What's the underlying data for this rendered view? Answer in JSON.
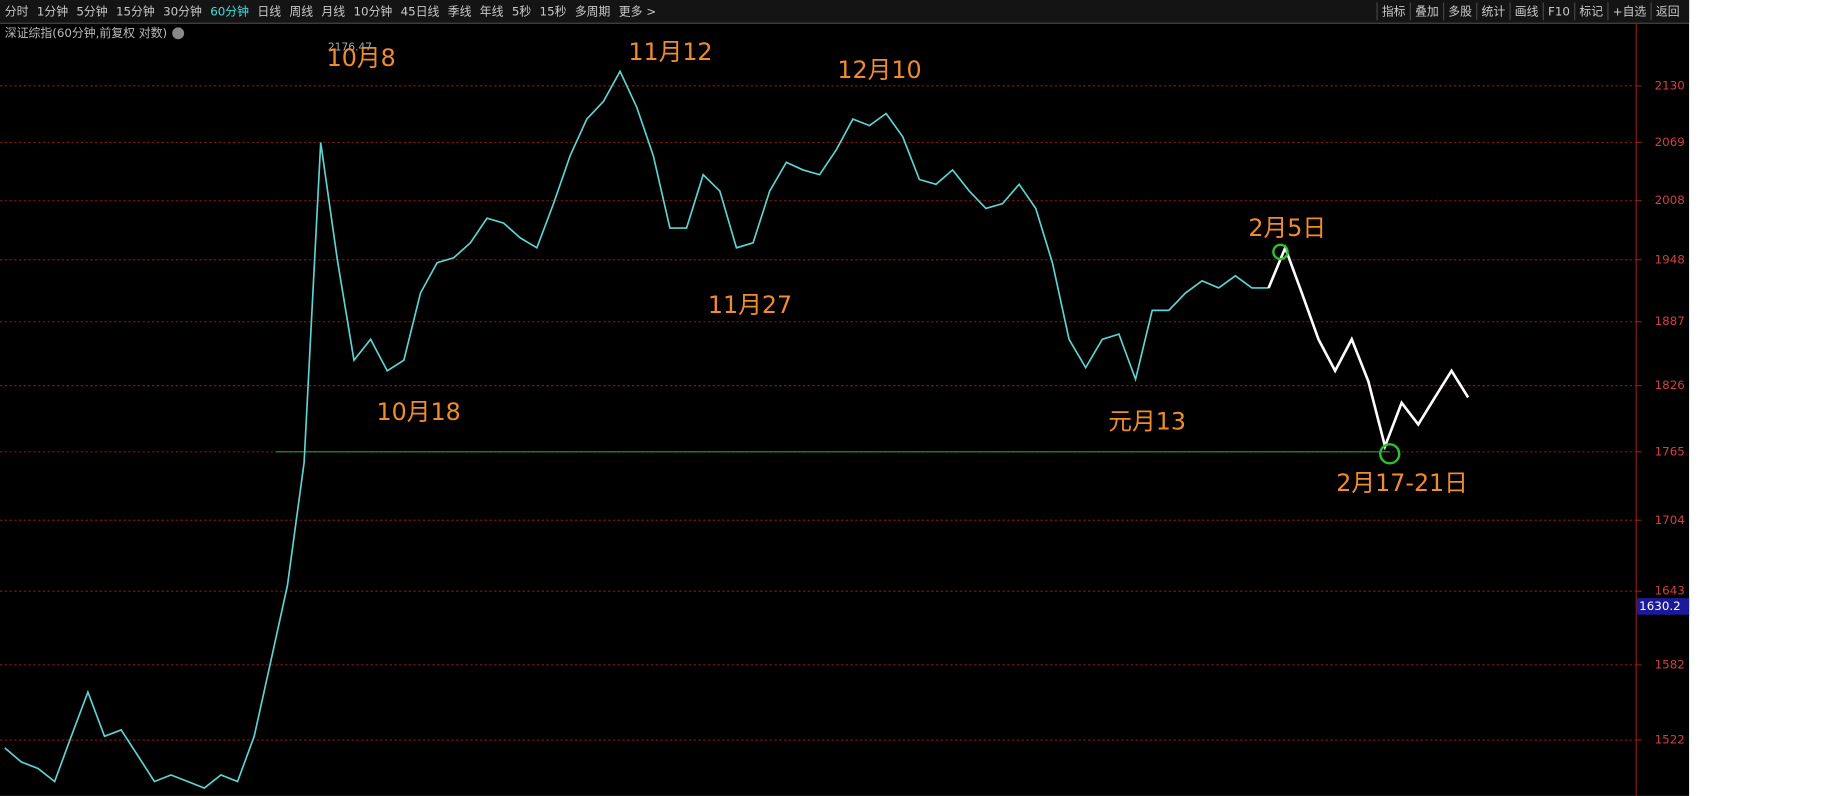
{
  "toolbar": {
    "left": [
      "分时",
      "1分钟",
      "5分钟",
      "15分钟",
      "30分钟",
      "60分钟",
      "日线",
      "周线",
      "月线",
      "10分钟",
      "45日线",
      "季线",
      "年线",
      "5秒",
      "15秒",
      "多周期",
      "更多 >"
    ],
    "active_index": 5,
    "right": [
      "指标",
      "叠加",
      "多股",
      "统计",
      "画线",
      "F10",
      "标记",
      "+自选",
      "返回"
    ]
  },
  "chart_data": {
    "type": "line",
    "title": "深证综指(60分钟,前复权 对数)",
    "log_y": true,
    "grid": true,
    "ylim": [
      1479,
      2199
    ],
    "yticks": [
      1522,
      1582,
      1643,
      1704,
      1765,
      1826,
      1887,
      1948,
      2008,
      2069,
      2130
    ],
    "series": [
      {
        "color": "#5fd3d3",
        "values": [
          1516,
          1505,
          1500,
          1490,
          1525,
          1560,
          1525,
          1530,
          1510,
          1490,
          1495,
          1490,
          1485,
          1495,
          1490,
          1525,
          1585,
          1648,
          1755,
          2069,
          1948,
          1850,
          1870,
          1840,
          1850,
          1915,
          1945,
          1950,
          1965,
          1990,
          1985,
          1970,
          1960,
          2005,
          2055,
          2094,
          2113,
          2146,
          2107,
          2055,
          1980,
          1980,
          2035,
          2018,
          1960,
          1965,
          2018,
          2048,
          2040,
          2035,
          2061,
          2094,
          2087,
          2100,
          2075,
          2030,
          2025,
          2040,
          2018,
          2000,
          2005,
          2025,
          2000,
          1945,
          1870,
          1843,
          1870,
          1875,
          1832,
          1898,
          1898,
          1915,
          1927,
          1920,
          1932,
          1920,
          1920,
          null,
          null,
          null,
          null,
          null,
          null,
          null,
          null,
          null,
          null,
          null,
          null
        ]
      },
      {
        "color": "#ffffff",
        "values": [
          null,
          null,
          null,
          null,
          null,
          null,
          null,
          null,
          null,
          null,
          null,
          null,
          null,
          null,
          null,
          null,
          null,
          null,
          null,
          null,
          null,
          null,
          null,
          null,
          null,
          null,
          null,
          null,
          null,
          null,
          null,
          null,
          null,
          null,
          null,
          null,
          null,
          null,
          null,
          null,
          null,
          null,
          null,
          null,
          null,
          null,
          null,
          null,
          null,
          null,
          null,
          null,
          null,
          null,
          null,
          null,
          null,
          null,
          null,
          null,
          null,
          null,
          null,
          null,
          null,
          null,
          null,
          null,
          null,
          null,
          null,
          null,
          null,
          null,
          null,
          null,
          1920,
          1960,
          1915,
          1870,
          1840,
          1870,
          1830,
          1770,
          1810,
          1790,
          1815,
          1840,
          1815
        ]
      }
    ],
    "max_label": "2176.47",
    "last_price": 1630.2,
    "support_level": 1765,
    "annotations": [
      "10月8",
      "11月12",
      "12月10",
      "10月18",
      "11月27",
      "元月13",
      "2月5日",
      "2月17-21日"
    ]
  }
}
